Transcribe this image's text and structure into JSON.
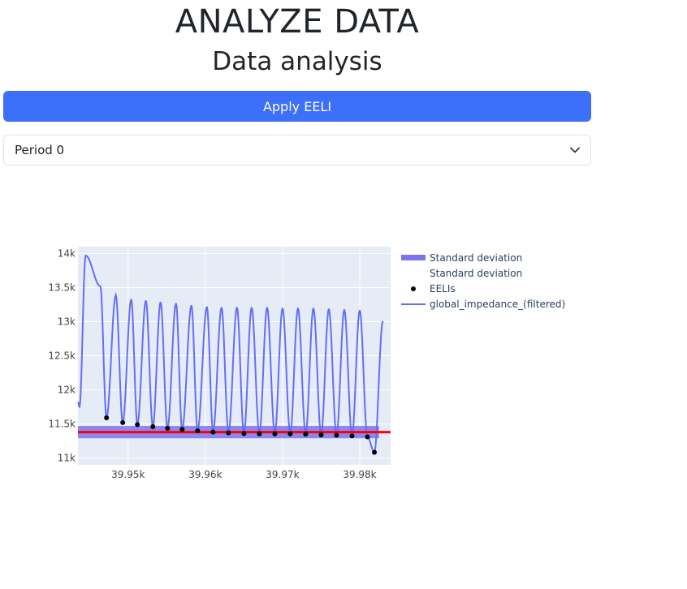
{
  "header": {
    "title": "ANALYZE DATA",
    "subtitle": "Data analysis"
  },
  "apply_button": {
    "label": "Apply EELI"
  },
  "period_select": {
    "value": "Period 0"
  },
  "chart_data": {
    "type": "line",
    "xlim": [
      39943.5,
      39984
    ],
    "ylim": [
      10900,
      14100
    ],
    "x_ticks": [
      39950,
      39960,
      39970,
      39980
    ],
    "x_tick_labels": [
      "39.95k",
      "39.96k",
      "39.97k",
      "39.98k"
    ],
    "y_ticks": [
      11000,
      11500,
      12000,
      12500,
      13000,
      13500,
      14000
    ],
    "y_tick_labels": [
      "11k",
      "11.5k",
      "12k",
      "12.5k",
      "13k",
      "13.5k",
      "14k"
    ],
    "grid": true,
    "legend_position": "right",
    "mean_eeli": 11380,
    "std_band": [
      11290,
      11470
    ],
    "std_band_x": [
      39943.5,
      39982.5
    ],
    "eelis": [
      {
        "x": 39947.2,
        "y": 11590
      },
      {
        "x": 39949.3,
        "y": 11520
      },
      {
        "x": 39951.2,
        "y": 11490
      },
      {
        "x": 39953.2,
        "y": 11460
      },
      {
        "x": 39955.1,
        "y": 11435
      },
      {
        "x": 39957.0,
        "y": 11420
      },
      {
        "x": 39959.0,
        "y": 11400
      },
      {
        "x": 39961.0,
        "y": 11380
      },
      {
        "x": 39963.0,
        "y": 11370
      },
      {
        "x": 39965.0,
        "y": 11360
      },
      {
        "x": 39967.0,
        "y": 11355
      },
      {
        "x": 39969.0,
        "y": 11355
      },
      {
        "x": 39971.0,
        "y": 11355
      },
      {
        "x": 39973.0,
        "y": 11350
      },
      {
        "x": 39975.0,
        "y": 11340
      },
      {
        "x": 39977.0,
        "y": 11335
      },
      {
        "x": 39979.0,
        "y": 11325
      },
      {
        "x": 39981.0,
        "y": 11310
      },
      {
        "x": 39981.9,
        "y": 11085
      }
    ],
    "peaks": [
      {
        "x": 39944.5,
        "y": 13970
      },
      {
        "x": 39946.4,
        "y": 13520
      },
      {
        "x": 39948.4,
        "y": 13390
      },
      {
        "x": 39950.4,
        "y": 13330
      },
      {
        "x": 39952.3,
        "y": 13310
      },
      {
        "x": 39954.2,
        "y": 13290
      },
      {
        "x": 39956.2,
        "y": 13270
      },
      {
        "x": 39958.2,
        "y": 13240
      },
      {
        "x": 39960.2,
        "y": 13220
      },
      {
        "x": 39962.1,
        "y": 13210
      },
      {
        "x": 39964.1,
        "y": 13210
      },
      {
        "x": 39966.0,
        "y": 13210
      },
      {
        "x": 39968.0,
        "y": 13210
      },
      {
        "x": 39970.0,
        "y": 13200
      },
      {
        "x": 39972.0,
        "y": 13200
      },
      {
        "x": 39974.0,
        "y": 13200
      },
      {
        "x": 39976.0,
        "y": 13190
      },
      {
        "x": 39978.0,
        "y": 13180
      },
      {
        "x": 39980.0,
        "y": 13170
      }
    ],
    "line_start": {
      "x": 39943.5,
      "y": 11820
    },
    "line_dip": {
      "x": 39943.7,
      "y": 11750
    },
    "line_end": {
      "x": 39983,
      "y": 13010
    },
    "series": [
      {
        "name": "Standard deviation",
        "color": "#7b74f0"
      },
      {
        "name": "Standard deviation",
        "color": "#ff0000"
      },
      {
        "name": "EELIs",
        "color": "#000000"
      },
      {
        "name": "global_impedance_(filtered)",
        "color": "#636efa"
      }
    ]
  }
}
